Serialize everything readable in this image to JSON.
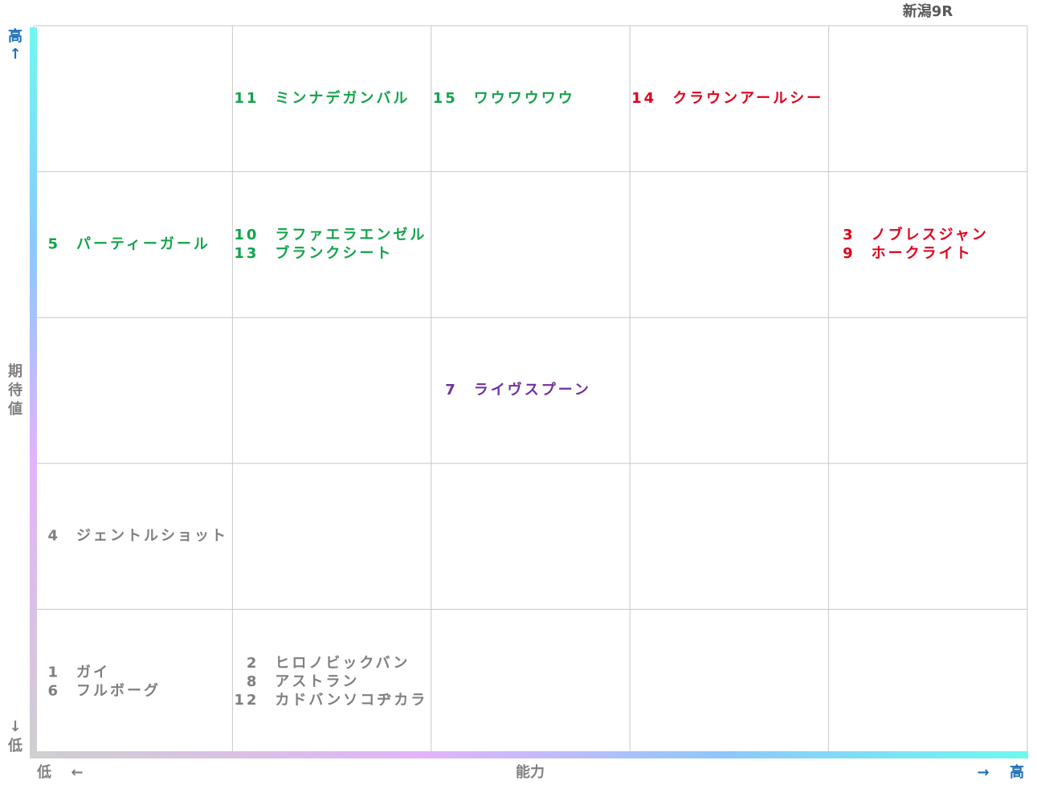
{
  "title": "新潟9R",
  "y_axis": {
    "high": "高",
    "high_arrow": "↑",
    "label": "期待値",
    "low_arrow": "↓",
    "low": "低"
  },
  "x_axis": {
    "low": "低",
    "low_arrow": "←",
    "label": "能力",
    "high_arrow": "→",
    "high": "高"
  },
  "grid": {
    "rows": [
      [
        [],
        [
          {
            "number": "11",
            "name": "ミンナデガンバル",
            "color": "#12a34a"
          }
        ],
        [
          {
            "number": "15",
            "name": "ワウワウワウ",
            "color": "#12a34a"
          }
        ],
        [
          {
            "number": "14",
            "name": "クラウンアールシー",
            "color": "#e0001b"
          }
        ],
        []
      ],
      [
        [
          {
            "number": "5",
            "name": "パーティーガール",
            "color": "#12a34a"
          }
        ],
        [
          {
            "number": "10",
            "name": "ラファエラエンゼル",
            "color": "#12a34a"
          },
          {
            "number": "13",
            "name": "ブランクシート",
            "color": "#12a34a"
          }
        ],
        [],
        [],
        [
          {
            "number": "3",
            "name": "ノブレスジャン",
            "color": "#e0001b"
          },
          {
            "number": "9",
            "name": "ホークライト",
            "color": "#e0001b"
          }
        ]
      ],
      [
        [],
        [],
        [
          {
            "number": "7",
            "name": "ライヴスプーン",
            "color": "#7030a0"
          }
        ],
        [],
        []
      ],
      [
        [
          {
            "number": "4",
            "name": "ジェントルショット",
            "color": "#7f7f7f"
          }
        ],
        [],
        [],
        [],
        []
      ],
      [
        [
          {
            "number": "1",
            "name": "ガイ",
            "color": "#7f7f7f"
          },
          {
            "number": "6",
            "name": "フルボーグ",
            "color": "#7f7f7f"
          }
        ],
        [
          {
            "number": "2",
            "name": "ヒロノビックバン",
            "color": "#7f7f7f"
          },
          {
            "number": "8",
            "name": "アストラン",
            "color": "#7f7f7f"
          },
          {
            "number": "12",
            "name": "カドバンソコヂカラ",
            "color": "#7f7f7f"
          }
        ],
        [],
        [],
        []
      ]
    ]
  }
}
